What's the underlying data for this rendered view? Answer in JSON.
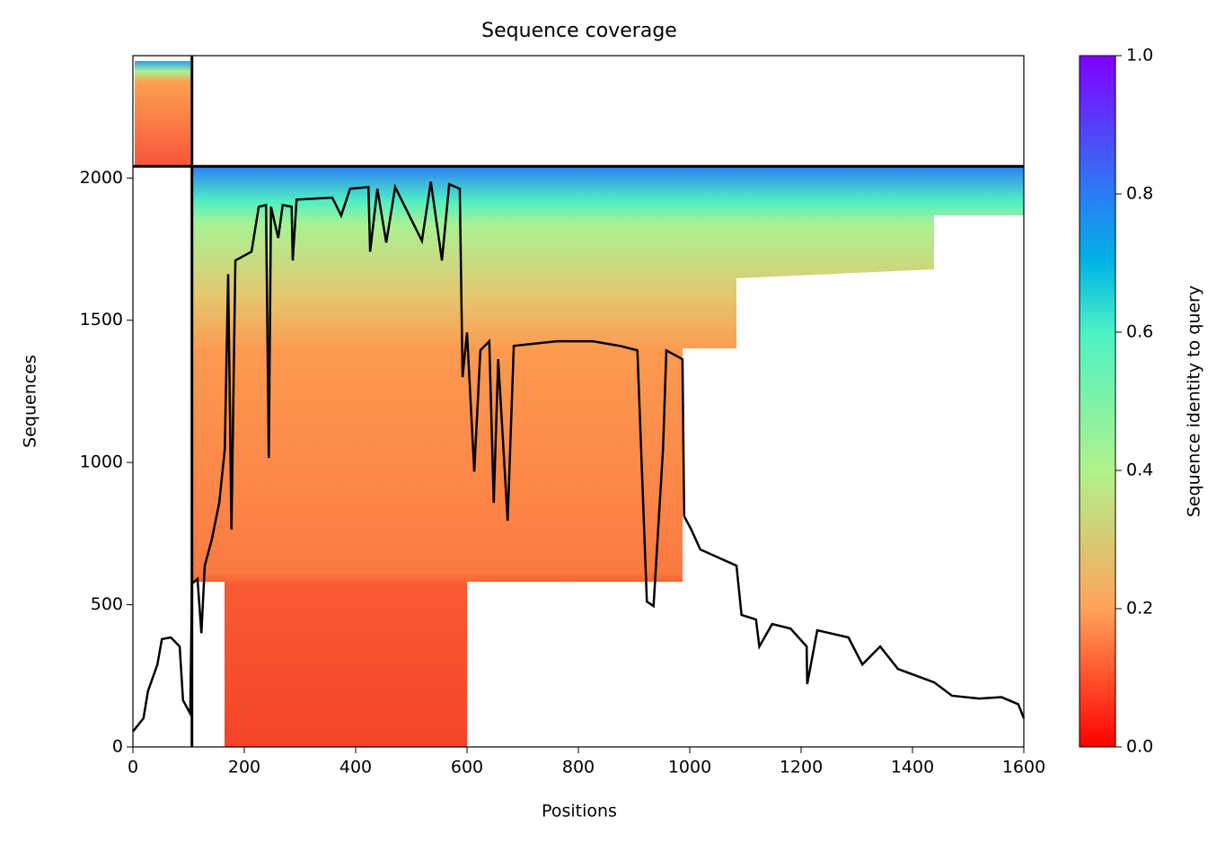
{
  "chart_data": {
    "type": "line",
    "title": "Sequence coverage",
    "xlabel": "Positions",
    "ylabel": "Sequences",
    "xlim": [
      0,
      1600
    ],
    "ylim": [
      0,
      2430
    ],
    "xticks": [
      0,
      200,
      400,
      600,
      800,
      1000,
      1200,
      1400,
      1600
    ],
    "yticks": [
      0,
      500,
      1000,
      1500,
      2000
    ],
    "boundaries": {
      "x": [
        106
      ],
      "y": [
        2041
      ]
    },
    "line": {
      "color": "#000000",
      "x": [
        0,
        19,
        27,
        44,
        52,
        68,
        84,
        90,
        103,
        106,
        116,
        123,
        129,
        142,
        155,
        165,
        171,
        177,
        184,
        213,
        226,
        239,
        244,
        248,
        261,
        269,
        285,
        287,
        294,
        358,
        374,
        390,
        423,
        426,
        439,
        455,
        471,
        519,
        535,
        555,
        568,
        587,
        592,
        600,
        613,
        624,
        640,
        648,
        656,
        673,
        684,
        761,
        826,
        874,
        906,
        923,
        935,
        952,
        958,
        987,
        990,
        1003,
        1019,
        1084,
        1093,
        1119,
        1125,
        1148,
        1181,
        1210,
        1211,
        1229,
        1285,
        1310,
        1342,
        1374,
        1439,
        1471,
        1520,
        1560,
        1590,
        1600
      ],
      "y": [
        54,
        101,
        196,
        290,
        379,
        385,
        353,
        164,
        117,
        574,
        590,
        400,
        637,
        732,
        858,
        1047,
        1662,
        764,
        1710,
        1741,
        1899,
        1905,
        1016,
        1899,
        1789,
        1905,
        1899,
        1710,
        1924,
        1931,
        1868,
        1962,
        1968,
        1741,
        1962,
        1773,
        1968,
        1779,
        1987,
        1710,
        1978,
        1962,
        1300,
        1457,
        968,
        1394,
        1426,
        858,
        1363,
        795,
        1410,
        1426,
        1426,
        1410,
        1394,
        511,
        495,
        1047,
        1394,
        1363,
        811,
        763,
        694,
        637,
        464,
        448,
        353,
        432,
        416,
        353,
        221,
        410,
        385,
        290,
        353,
        274,
        227,
        180,
        170,
        175,
        150,
        101
      ]
    },
    "colorbar": {
      "label": "Sequence identity to query",
      "lim": [
        0,
        1
      ],
      "ticks": [
        {
          "value": 0,
          "label": "0.0"
        },
        0.2,
        0.4,
        0.6,
        0.8,
        {
          "value": 1,
          "label": "1.0"
        }
      ]
    }
  }
}
